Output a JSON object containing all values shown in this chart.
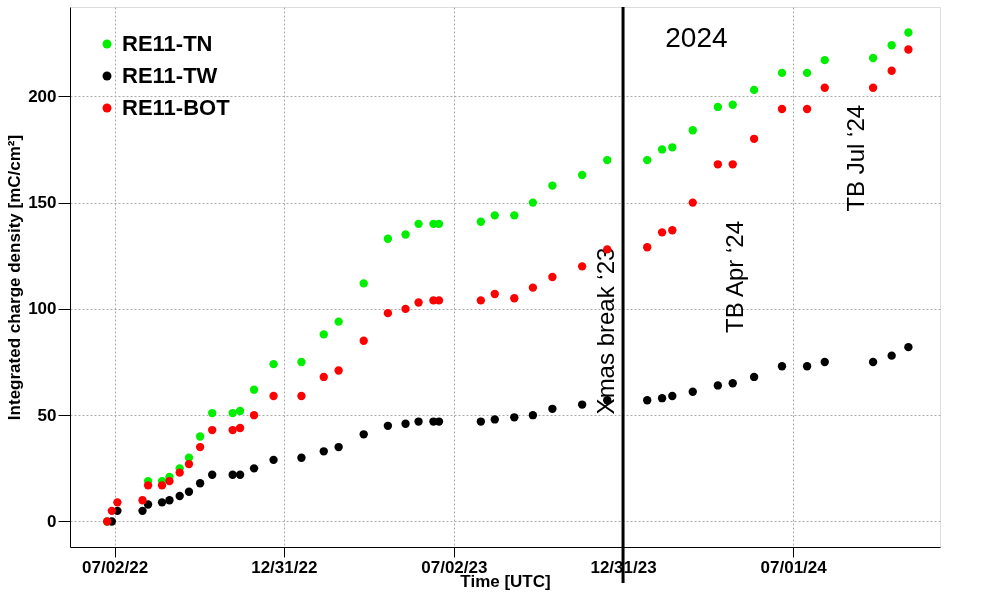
{
  "chart_data": {
    "type": "scatter",
    "xlabel": "Time [UTC]",
    "ylabel": "Integrated charge density [mC/cm²]",
    "x": [
      "2022-06-24",
      "2022-06-29",
      "2022-07-05",
      "2022-08-01",
      "2022-08-07",
      "2022-08-22",
      "2022-08-30",
      "2022-09-10",
      "2022-09-20",
      "2022-10-02",
      "2022-10-15",
      "2022-11-06",
      "2022-11-14",
      "2022-11-29",
      "2022-12-20",
      "2023-01-19",
      "2023-02-12",
      "2023-02-28",
      "2023-03-27",
      "2023-04-22",
      "2023-05-11",
      "2023-05-25",
      "2023-06-10",
      "2023-06-16",
      "2023-07-31",
      "2023-08-15",
      "2023-09-05",
      "2023-09-25",
      "2023-10-16",
      "2023-11-17",
      "2023-12-14",
      "2024-01-26",
      "2024-02-11",
      "2024-02-22",
      "2024-03-15",
      "2024-04-11",
      "2024-04-27",
      "2024-05-20",
      "2024-06-19",
      "2024-07-16",
      "2024-08-04",
      "2024-09-25",
      "2024-10-15",
      "2024-11-02"
    ],
    "series": [
      {
        "name": "RE11-TN",
        "color": "#00ee00",
        "values": [
          0,
          null,
          null,
          null,
          19,
          19,
          21,
          25,
          30,
          40,
          51,
          51,
          52,
          62,
          74,
          75,
          88,
          94,
          112,
          133,
          135,
          140,
          140,
          140,
          141,
          144,
          144,
          150,
          158,
          163,
          170,
          170,
          175,
          176,
          184,
          195,
          196,
          203,
          211,
          211,
          217,
          218,
          224,
          230
        ]
      },
      {
        "name": "RE11-TW",
        "color": "#000000",
        "values": [
          null,
          0,
          5,
          5,
          8,
          9,
          10,
          12,
          14,
          18,
          22,
          22,
          22,
          25,
          29,
          30,
          33,
          35,
          41,
          45,
          46,
          47,
          47,
          47,
          47,
          48,
          49,
          50,
          53,
          55,
          57,
          57,
          58,
          59,
          61,
          64,
          65,
          68,
          73,
          73,
          75,
          75,
          78,
          82
        ]
      },
      {
        "name": "RE11-BOT",
        "color": "#ff0000",
        "values": [
          0,
          5,
          9,
          10,
          17,
          17,
          19,
          23,
          27,
          35,
          43,
          43,
          44,
          50,
          59,
          59,
          68,
          71,
          85,
          98,
          100,
          103,
          104,
          104,
          104,
          107,
          105,
          110,
          115,
          120,
          128,
          129,
          136,
          137,
          150,
          168,
          168,
          180,
          194,
          194,
          204,
          204,
          212,
          222
        ]
      }
    ],
    "xlim": [
      "2022-05-15",
      "2024-12-06"
    ],
    "xticks": [
      {
        "value": "2022-07-02",
        "label": "07/02/22"
      },
      {
        "value": "2022-12-31",
        "label": "12/31/22"
      },
      {
        "value": "2023-07-02",
        "label": "07/02/23"
      },
      {
        "value": "2023-12-31",
        "label": "12/31/23"
      },
      {
        "value": "2024-07-01",
        "label": "07/01/24"
      }
    ],
    "ylim": [
      -12,
      242
    ],
    "yticks": [
      0,
      50,
      100,
      150,
      200
    ],
    "grid": true,
    "legend": "top left",
    "marker": "circle",
    "ref_lines": [
      {
        "axis": "x",
        "value": "2023-12-31",
        "label": "Xmas break ‘23",
        "color": "#000000"
      }
    ],
    "annotations": [
      "2024",
      "TB Apr ‘24",
      "TB Jul ‘24"
    ]
  }
}
